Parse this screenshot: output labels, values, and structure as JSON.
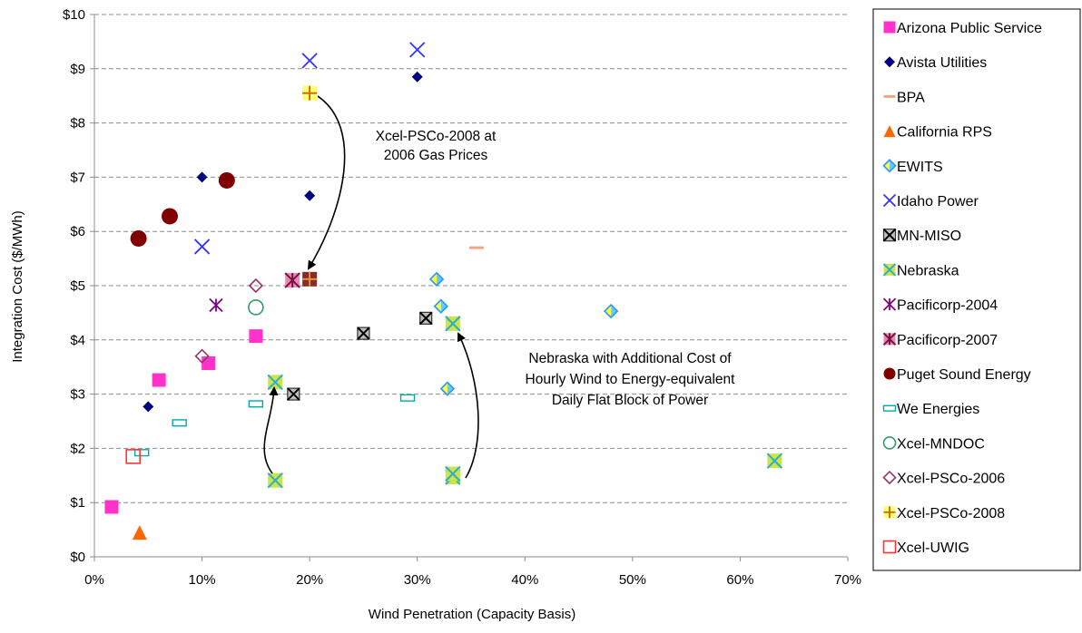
{
  "chart_data": {
    "type": "scatter",
    "xlabel": "Wind Penetration (Capacity Basis)",
    "ylabel": "Integration Cost ($/MWh)",
    "xlim": [
      0,
      70
    ],
    "ylim": [
      0,
      10
    ],
    "x_ticks": [
      "0%",
      "10%",
      "20%",
      "30%",
      "40%",
      "50%",
      "60%",
      "70%"
    ],
    "y_ticks": [
      "$0",
      "$1",
      "$2",
      "$3",
      "$4",
      "$5",
      "$6",
      "$7",
      "$8",
      "$9",
      "$10"
    ],
    "grid": "horizontal dashed",
    "legend_position": "right",
    "series": [
      {
        "name": "Arizona Public Service",
        "marker": "square",
        "color": "#ff33cc",
        "x": [
          1.6,
          6.0,
          10.6,
          15.0
        ],
        "y": [
          0.92,
          3.26,
          3.57,
          4.07
        ]
      },
      {
        "name": "Avista Utilities",
        "marker": "diamond",
        "color": "#000080",
        "x": [
          5.0,
          10.0,
          20.0,
          30.0
        ],
        "y": [
          2.77,
          7.0,
          6.66,
          8.85
        ]
      },
      {
        "name": "BPA",
        "marker": "dash",
        "color": "#f4a582",
        "x": [
          35.5
        ],
        "y": [
          5.7
        ]
      },
      {
        "name": "California RPS",
        "marker": "triangle",
        "color": "#ff6600",
        "x": [
          4.2
        ],
        "y": [
          0.45
        ]
      },
      {
        "name": "EWITS",
        "marker": "diamond-split",
        "color": "#ffff00",
        "x": [
          31.8,
          32.2,
          32.8,
          48.0
        ],
        "y": [
          5.12,
          4.62,
          3.1,
          4.53
        ]
      },
      {
        "name": "Idaho Power",
        "marker": "x",
        "color": "#3333ff",
        "x": [
          10.0,
          20.0,
          30.0
        ],
        "y": [
          5.72,
          9.15,
          9.35
        ]
      },
      {
        "name": "MN-MISO",
        "marker": "boxed-x",
        "color": "#333333",
        "x": [
          18.5,
          25.0,
          30.8
        ],
        "y": [
          3.0,
          4.12,
          4.4
        ]
      },
      {
        "name": "Nebraska",
        "marker": "boxed-x-yellow",
        "color": "#ccff33",
        "x": [
          16.8,
          16.8,
          33.3,
          33.3,
          33.3,
          63.2
        ],
        "y": [
          3.22,
          1.41,
          4.3,
          1.47,
          1.53,
          1.77
        ]
      },
      {
        "name": "Pacificorp-2004",
        "marker": "star",
        "color": "#800080",
        "x": [
          11.3
        ],
        "y": [
          4.64
        ]
      },
      {
        "name": "Pacificorp-2007",
        "marker": "boxed-star",
        "color": "#800040",
        "x": [
          18.4
        ],
        "y": [
          5.1
        ]
      },
      {
        "name": "Puget Sound Energy",
        "marker": "circle",
        "color": "#800000",
        "x": [
          4.1,
          7.0,
          12.3
        ],
        "y": [
          5.87,
          6.28,
          6.94
        ]
      },
      {
        "name": "We Energies",
        "marker": "small-rect",
        "color": "#00aaaa",
        "x": [
          4.4,
          7.9,
          15.0,
          29.1
        ],
        "y": [
          1.92,
          2.47,
          2.82,
          2.93
        ]
      },
      {
        "name": "Xcel-MNDOC",
        "marker": "open-circle",
        "color": "#339966",
        "x": [
          15.0
        ],
        "y": [
          4.6
        ]
      },
      {
        "name": "Xcel-PSCo-2006",
        "marker": "open-diamond",
        "color": "#993366",
        "x": [
          10.0,
          15.0
        ],
        "y": [
          3.7,
          5.0
        ]
      },
      {
        "name": "Xcel-PSCo-2008",
        "marker": "plus",
        "color": "#ffcc00",
        "x": [
          20.0,
          20.0
        ],
        "y": [
          8.55,
          5.12
        ]
      },
      {
        "name": "Xcel-UWIG",
        "marker": "open-square",
        "color": "#ff3333",
        "x": [
          3.6
        ],
        "y": [
          1.85
        ]
      }
    ],
    "annotations": [
      {
        "id": "xcel",
        "lines": [
          "Xcel-PSCo-2008  at",
          "2006 Gas Prices"
        ]
      },
      {
        "id": "nebraska",
        "lines": [
          "Nebraska with Additional Cost of",
          "Hourly Wind to Energy-equivalent",
          "Daily Flat Block of Power"
        ]
      }
    ]
  }
}
